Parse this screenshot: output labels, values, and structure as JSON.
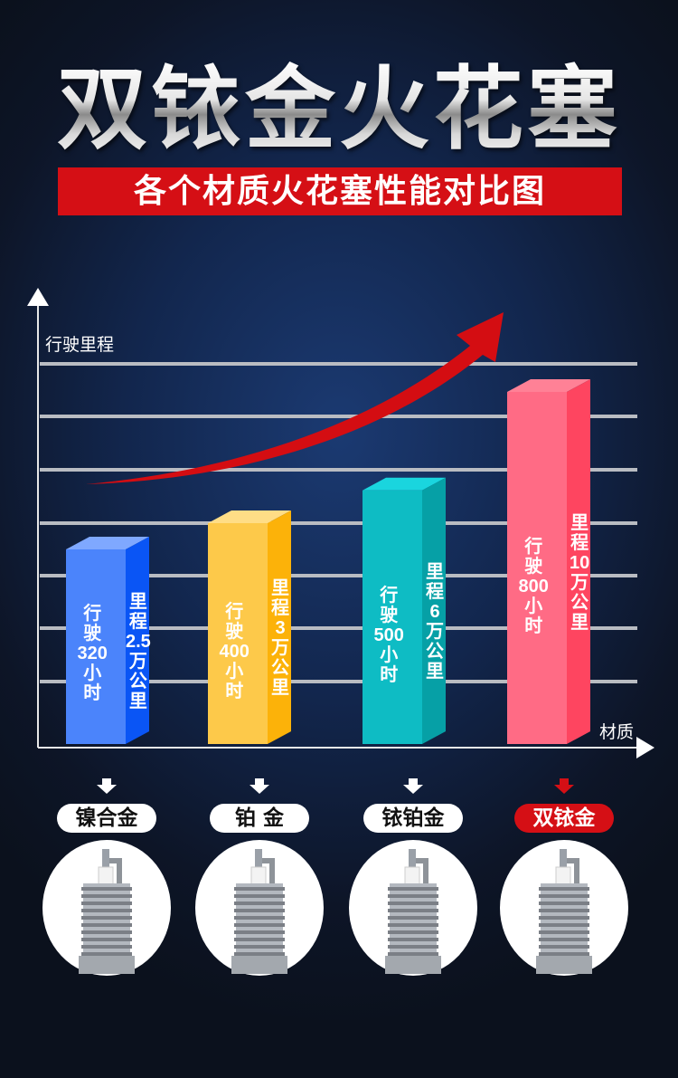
{
  "title": "双铱金火花塞",
  "subtitle": "各个材质火花塞性能对比图",
  "colors": {
    "accent": "#d50f15",
    "title_bg": "#0d1527"
  },
  "chart_data": {
    "type": "bar",
    "ylabel": "行驶里程",
    "xlabel": "材质",
    "categories": [
      "镍合金",
      "铂 金",
      "铱铂金",
      "双铱金"
    ],
    "series": [
      {
        "name": "行驶",
        "unit": "小时",
        "values": [
          320,
          400,
          500,
          800
        ]
      },
      {
        "name": "里程",
        "unit": "万公里",
        "values": [
          2.5,
          3,
          6,
          10
        ]
      }
    ],
    "bars": [
      {
        "front_lines": [
          "行",
          "驶",
          "320",
          "小",
          "时"
        ],
        "side_lines": [
          "里",
          "程",
          "2.5",
          "万",
          "公",
          "里"
        ],
        "front": "#4b84fb",
        "side": "#0a55f5",
        "top": "#7fa8ff"
      },
      {
        "front_lines": [
          "行",
          "驶",
          "400",
          "小",
          "时"
        ],
        "side_lines": [
          "里",
          "程",
          "3",
          "万",
          "公",
          "里"
        ],
        "front": "#fdc94a",
        "side": "#fcb209",
        "top": "#ffdd86"
      },
      {
        "front_lines": [
          "行",
          "驶",
          "500",
          "小",
          "时"
        ],
        "side_lines": [
          "里",
          "程",
          "6",
          "万",
          "公",
          "里"
        ],
        "front": "#0ebcc4",
        "side": "#06a0a6",
        "top": "#1ad5de"
      },
      {
        "front_lines": [
          "行",
          "驶",
          "800",
          "小",
          "时"
        ],
        "side_lines": [
          "里",
          "程",
          "10",
          "万",
          "公",
          "里"
        ],
        "front": "#ff6b85",
        "side": "#fe4560",
        "top": "#ff8196"
      }
    ],
    "highlighted": "双铱金",
    "grid": true,
    "trend_arrow": "rising red arrow"
  }
}
